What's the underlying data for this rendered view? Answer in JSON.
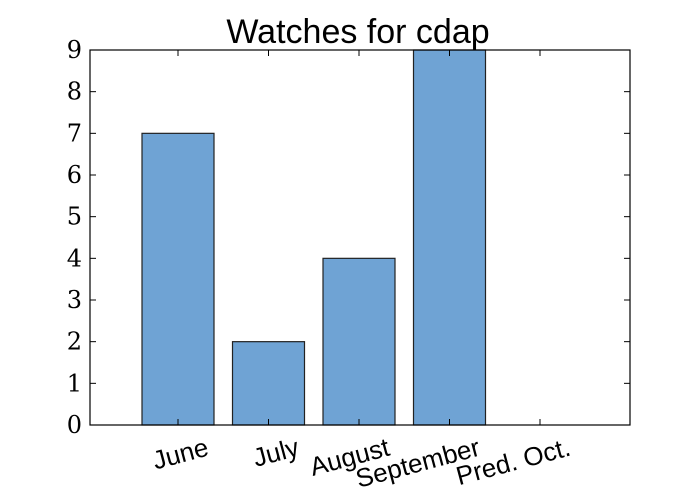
{
  "chart_data": {
    "type": "bar",
    "title": "Watches for cdap",
    "xlabel": "",
    "ylabel": "",
    "categories": [
      "June",
      "July",
      "August",
      "September",
      "Pred. Oct."
    ],
    "values": [
      7,
      2,
      4,
      9,
      0
    ],
    "ylim": [
      0,
      9
    ],
    "yticks": [
      0,
      1,
      2,
      3,
      4,
      5,
      6,
      7,
      8,
      9
    ],
    "bar_color": "#6fa3d4",
    "grid": false
  }
}
